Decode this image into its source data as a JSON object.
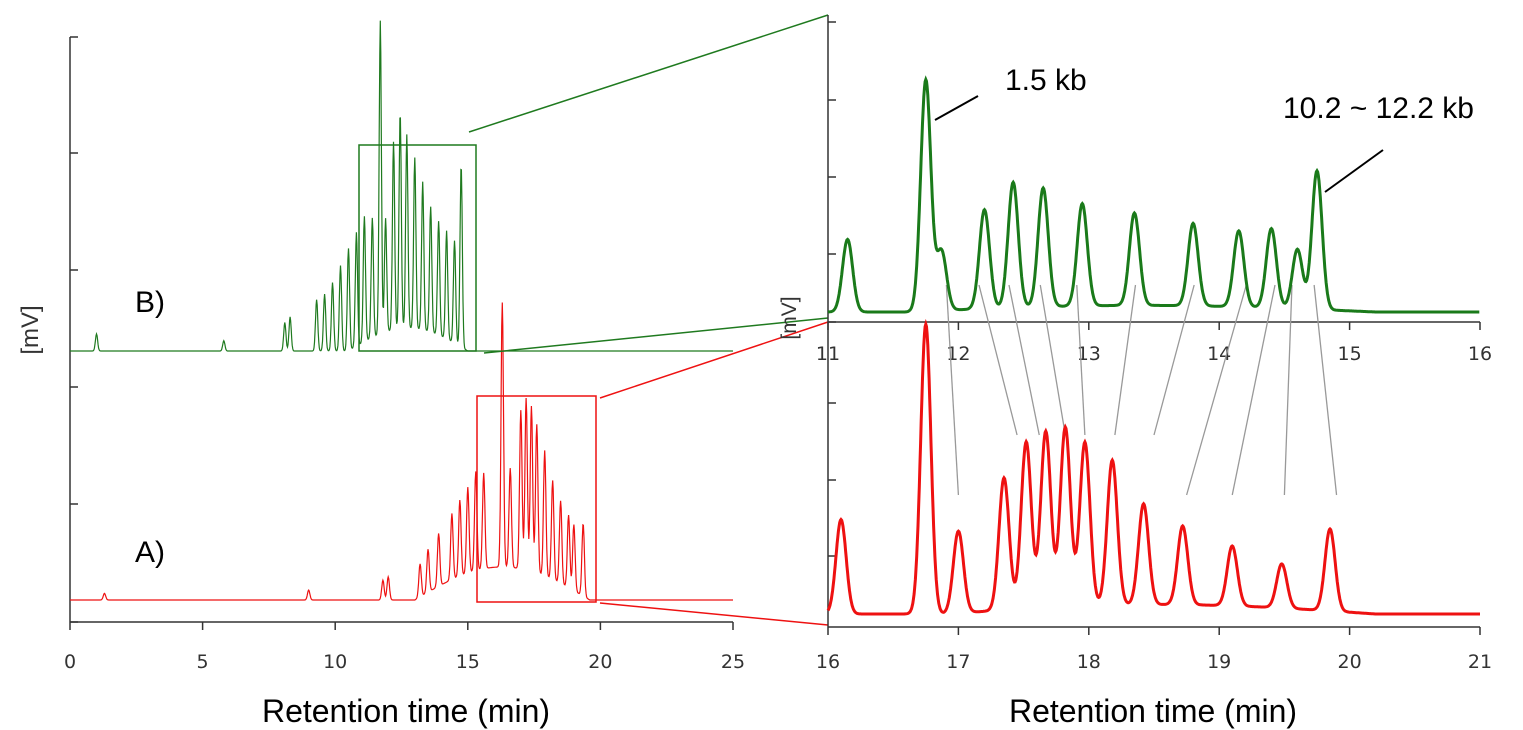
{
  "chart_data": [
    {
      "type": "line",
      "panel": "left",
      "xlabel": "Retention time (min)",
      "ylabel": "[mV]",
      "xlim": [
        0,
        25
      ],
      "x_ticks": [
        "0",
        "5",
        "10",
        "15",
        "20",
        "25"
      ],
      "grid": false,
      "series": [
        {
          "name": "B)",
          "color": "#1f7a1f",
          "offset_level": 0.5,
          "peaks": [
            {
              "x": 1.0,
              "h": 0.03
            },
            {
              "x": 5.8,
              "h": 0.018
            },
            {
              "x": 8.1,
              "h": 0.05
            },
            {
              "x": 8.3,
              "h": 0.06
            },
            {
              "x": 9.3,
              "h": 0.09
            },
            {
              "x": 9.6,
              "h": 0.1
            },
            {
              "x": 9.9,
              "h": 0.12
            },
            {
              "x": 10.2,
              "h": 0.15
            },
            {
              "x": 10.5,
              "h": 0.18
            },
            {
              "x": 10.8,
              "h": 0.2
            },
            {
              "x": 11.1,
              "h": 0.22
            },
            {
              "x": 11.4,
              "h": 0.21
            },
            {
              "x": 11.7,
              "h": 0.55
            },
            {
              "x": 11.9,
              "h": 0.2
            },
            {
              "x": 12.2,
              "h": 0.33
            },
            {
              "x": 12.45,
              "h": 0.38
            },
            {
              "x": 12.7,
              "h": 0.34
            },
            {
              "x": 13.0,
              "h": 0.3
            },
            {
              "x": 13.3,
              "h": 0.26
            },
            {
              "x": 13.6,
              "h": 0.22
            },
            {
              "x": 13.9,
              "h": 0.2
            },
            {
              "x": 14.2,
              "h": 0.19
            },
            {
              "x": 14.5,
              "h": 0.18
            },
            {
              "x": 14.75,
              "h": 0.32
            }
          ]
        },
        {
          "name": "A)",
          "color": "#ee1111",
          "offset_level": 0.0,
          "peaks": [
            {
              "x": 1.3,
              "h": 0.02
            },
            {
              "x": 9.0,
              "h": 0.03
            },
            {
              "x": 11.8,
              "h": 0.06
            },
            {
              "x": 12.0,
              "h": 0.07
            },
            {
              "x": 13.2,
              "h": 0.1
            },
            {
              "x": 13.5,
              "h": 0.13
            },
            {
              "x": 13.9,
              "h": 0.16
            },
            {
              "x": 14.4,
              "h": 0.2
            },
            {
              "x": 14.7,
              "h": 0.23
            },
            {
              "x": 15.0,
              "h": 0.26
            },
            {
              "x": 15.3,
              "h": 0.3
            },
            {
              "x": 15.6,
              "h": 0.29
            },
            {
              "x": 16.3,
              "h": 0.8
            },
            {
              "x": 16.6,
              "h": 0.3
            },
            {
              "x": 17.0,
              "h": 0.48
            },
            {
              "x": 17.2,
              "h": 0.52
            },
            {
              "x": 17.4,
              "h": 0.5
            },
            {
              "x": 17.6,
              "h": 0.45
            },
            {
              "x": 17.9,
              "h": 0.38
            },
            {
              "x": 18.2,
              "h": 0.3
            },
            {
              "x": 18.5,
              "h": 0.25
            },
            {
              "x": 18.8,
              "h": 0.22
            },
            {
              "x": 19.0,
              "h": 0.2
            },
            {
              "x": 19.35,
              "h": 0.22
            }
          ]
        }
      ],
      "zoom_boxes": [
        {
          "series": "B)",
          "xlim": [
            11,
            15.3
          ]
        },
        {
          "series": "A)",
          "xlim": [
            15.3,
            19.8
          ]
        }
      ]
    },
    {
      "type": "line",
      "panel": "right-top",
      "ylabel": "[mV]",
      "xlim": [
        11,
        16
      ],
      "x_ticks": [
        "11",
        "12",
        "13",
        "14",
        "15",
        "16"
      ],
      "series": [
        {
          "color": "#1a7a1a",
          "peaks": [
            {
              "x": 11.15,
              "h": 0.22
            },
            {
              "x": 11.75,
              "h": 0.7
            },
            {
              "x": 11.87,
              "h": 0.18
            },
            {
              "x": 12.2,
              "h": 0.3
            },
            {
              "x": 12.42,
              "h": 0.38
            },
            {
              "x": 12.65,
              "h": 0.36
            },
            {
              "x": 12.95,
              "h": 0.31
            },
            {
              "x": 13.35,
              "h": 0.28
            },
            {
              "x": 13.8,
              "h": 0.25
            },
            {
              "x": 14.15,
              "h": 0.23
            },
            {
              "x": 14.4,
              "h": 0.24
            },
            {
              "x": 14.6,
              "h": 0.18
            },
            {
              "x": 14.75,
              "h": 0.42
            }
          ]
        }
      ],
      "annotations": [
        "1.5 kb",
        "10.2 ~ 12.2 kb"
      ]
    },
    {
      "type": "line",
      "panel": "right-bottom",
      "xlim": [
        16,
        21
      ],
      "x_ticks": [
        "16",
        "17",
        "18",
        "19",
        "20",
        "21"
      ],
      "series": [
        {
          "color": "#ee1111",
          "peaks": [
            {
              "x": 16.1,
              "h": 0.3
            },
            {
              "x": 16.75,
              "h": 0.92
            },
            {
              "x": 17.0,
              "h": 0.26
            },
            {
              "x": 17.35,
              "h": 0.42
            },
            {
              "x": 17.52,
              "h": 0.53
            },
            {
              "x": 17.67,
              "h": 0.56
            },
            {
              "x": 17.82,
              "h": 0.57
            },
            {
              "x": 17.97,
              "h": 0.52
            },
            {
              "x": 18.18,
              "h": 0.46
            },
            {
              "x": 18.42,
              "h": 0.32
            },
            {
              "x": 18.72,
              "h": 0.25
            },
            {
              "x": 19.1,
              "h": 0.19
            },
            {
              "x": 19.48,
              "h": 0.14
            },
            {
              "x": 19.85,
              "h": 0.26
            }
          ]
        }
      ],
      "xlabel": "Retention time (min)"
    }
  ],
  "matching_lines": [
    [
      12.0,
      17.0
    ],
    [
      12.25,
      17.45
    ],
    [
      12.48,
      17.62
    ],
    [
      12.72,
      17.82
    ],
    [
      13.0,
      17.97
    ],
    [
      13.45,
      18.2
    ],
    [
      13.9,
      18.5
    ],
    [
      14.3,
      18.75
    ],
    [
      14.52,
      19.1
    ],
    [
      14.65,
      19.5
    ],
    [
      14.82,
      19.9
    ]
  ]
}
